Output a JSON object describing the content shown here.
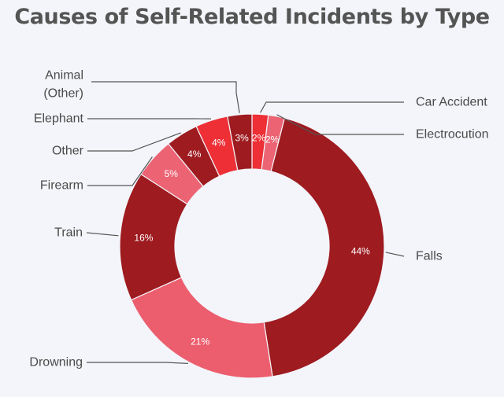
{
  "chart_data": {
    "type": "pie",
    "title": "Causes of Self-Related Incidents by Type",
    "slices": [
      {
        "label": "Car Accident",
        "value": 2,
        "display": "2%",
        "color": "#ee2f36"
      },
      {
        "label": "Electrocution",
        "value": 2,
        "display": "2%",
        "color": "#ec6474"
      },
      {
        "label": "Falls",
        "value": 44,
        "display": "44%",
        "color": "#9e1b20"
      },
      {
        "label": "Drowning",
        "value": 21,
        "display": "21%",
        "color": "#ec5e6e"
      },
      {
        "label": "Train",
        "value": 16,
        "display": "16%",
        "color": "#9e1b20"
      },
      {
        "label": "Firearm",
        "value": 5,
        "display": "5%",
        "color": "#ec6474"
      },
      {
        "label": "Other",
        "value": 4,
        "display": "4%",
        "color": "#9e1b20"
      },
      {
        "label": "Elephant",
        "value": 4,
        "display": "4%",
        "color": "#ee2f36"
      },
      {
        "label": "Animal (Other)",
        "label_lines": [
          "Animal",
          "(Other)"
        ],
        "value": 3,
        "display": "3%",
        "color": "#9e1b20"
      }
    ]
  }
}
